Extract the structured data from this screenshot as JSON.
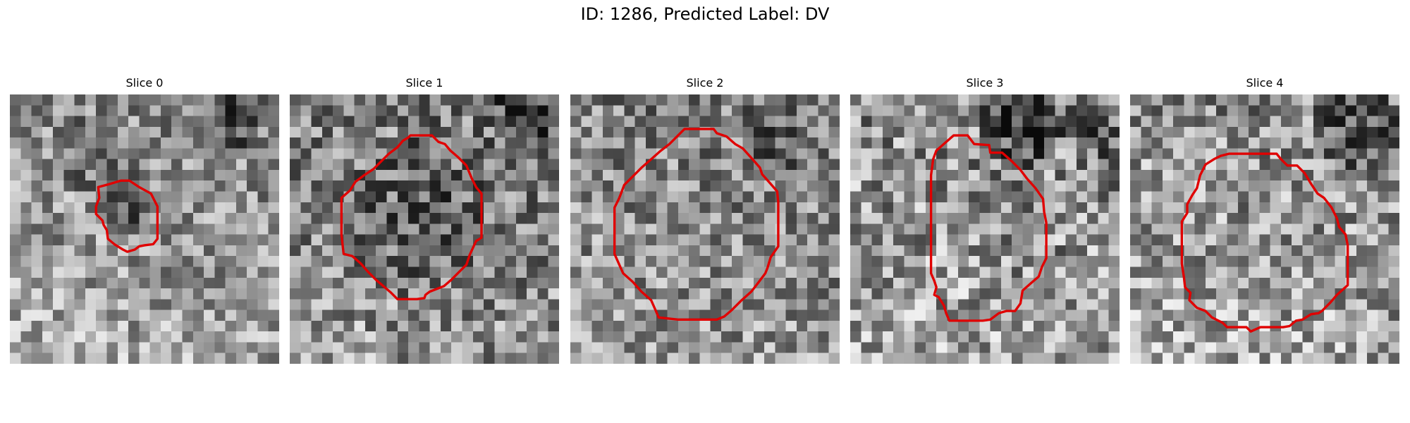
{
  "figure": {
    "title": "ID: 1286, Predicted Label: DV",
    "grid_size": 25,
    "contour_color": "#e00000",
    "panels": [
      {
        "title": "Slice 0"
      },
      {
        "title": "Slice 1"
      },
      {
        "title": "Slice 2"
      },
      {
        "title": "Slice 3"
      },
      {
        "title": "Slice 4"
      }
    ]
  }
}
